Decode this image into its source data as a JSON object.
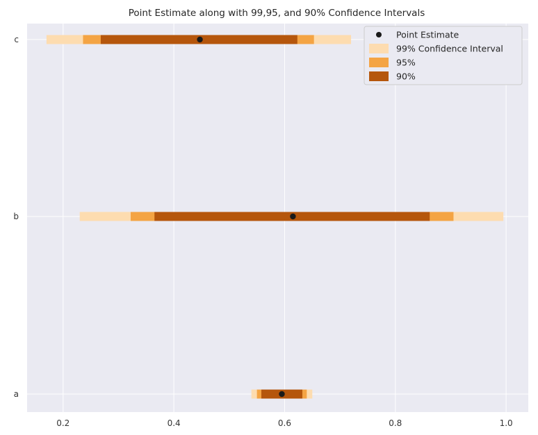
{
  "chart_data": {
    "type": "interval",
    "title": "Point Estimate along with 99,95, and 90% Confidence Intervals",
    "xlabel": "",
    "ylabel": "",
    "xlim": [
      0.135,
      1.04
    ],
    "x_ticks": [
      0.2,
      0.4,
      0.6,
      0.8,
      1.0
    ],
    "x_tick_labels": [
      "0.2",
      "0.4",
      "0.6",
      "0.8",
      "1.0"
    ],
    "categories": [
      "a",
      "b",
      "c"
    ],
    "grid": true,
    "legend_position": "top-right",
    "legend": [
      {
        "label": "Point Estimate",
        "kind": "point",
        "color": "#1a1a1a"
      },
      {
        "label": "99% Confidence Interval",
        "kind": "patch",
        "color": "#fddcb0"
      },
      {
        "label": "95%",
        "kind": "patch",
        "color": "#f4a444"
      },
      {
        "label": "90%",
        "kind": "patch",
        "color": "#b5560c"
      }
    ],
    "series": [
      {
        "category": "a",
        "point": 0.595,
        "ci99": [
          0.54,
          0.65
        ],
        "ci95": [
          0.55,
          0.64
        ],
        "ci90": [
          0.558,
          0.632
        ]
      },
      {
        "category": "b",
        "point": 0.615,
        "ci99": [
          0.23,
          0.995
        ],
        "ci95": [
          0.322,
          0.905
        ],
        "ci90": [
          0.365,
          0.862
        ]
      },
      {
        "category": "c",
        "point": 0.447,
        "ci99": [
          0.17,
          0.72
        ],
        "ci95": [
          0.236,
          0.653
        ],
        "ci90": [
          0.268,
          0.623
        ]
      }
    ],
    "colors": {
      "background": "#eaeaf2",
      "grid": "#ffffff",
      "ci99": "#fddcb0",
      "ci95": "#f4a444",
      "ci90": "#b5560c",
      "point": "#1a1a1a"
    }
  }
}
